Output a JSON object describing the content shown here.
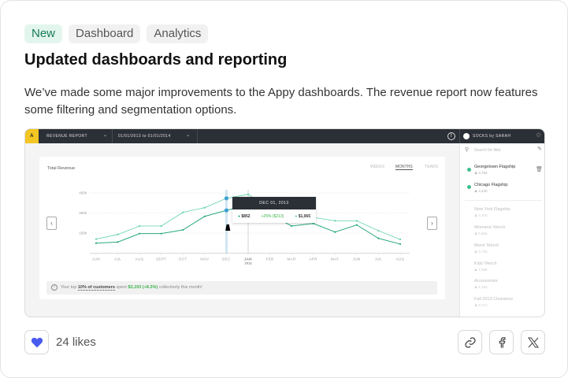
{
  "tags": [
    "New",
    "Dashboard",
    "Analytics"
  ],
  "title": "Updated dashboards and reporting",
  "description": "We’ve made some major improvements to the Appy dashboards. The revenue report now features some filtering and segmentation options.",
  "screenshot": {
    "logo": "A",
    "report_select": "REVENUE REPORT",
    "date_from": "01/01/2013",
    "date_to_word": "to",
    "date_to": "01/01/2014",
    "account": "SOCKS by SARAH",
    "search_placeholder": "Search for filter",
    "active_filters": [
      {
        "name": "Georgetown Flagship",
        "count": "3,753"
      },
      {
        "name": "Chicago Flagship",
        "count": "3,420"
      }
    ],
    "other_filters": [
      {
        "name": "New York Flagship",
        "count": "4,100"
      },
      {
        "name": "Womens' Merch",
        "count": "5,666"
      },
      {
        "name": "Mens' Merch",
        "count": "3,733"
      },
      {
        "name": "Kids' Merch",
        "count": "7,589"
      },
      {
        "name": "Accessories",
        "count": "2,163"
      },
      {
        "name": "Fall 2013 Clearance",
        "count": "8,713"
      }
    ],
    "chart_title": "Total Revenue",
    "ranges": [
      "WEEKS",
      "MONTHS",
      "YEARS"
    ],
    "active_range": "MONTHS",
    "tooltip": {
      "date": "DEC 01, 2013",
      "value_a": "$852",
      "change": "+25% ($213)",
      "value_b": "$1,065"
    },
    "insight": {
      "prefix": "Your top",
      "highlight": "10% of customers",
      "middle": "spent",
      "amount": "$3,193 (+8.3%)",
      "suffix": "collectively this month!"
    },
    "colors": {
      "topbar": "#2b2f36",
      "logo": "#f3c623",
      "series_light": "#5fd3a5",
      "series_dark": "#2aa882",
      "highlight": "#3ca0d0",
      "positive": "#3bb24a"
    }
  },
  "chart_data": {
    "type": "line",
    "categories": [
      "JUN",
      "JUL",
      "AUG",
      "SEPT",
      "OCT",
      "NOV",
      "DEC",
      "JAN",
      "FEB",
      "MAR",
      "APR",
      "MAY",
      "JUN",
      "JUL",
      "AUG"
    ],
    "year_label": "2013",
    "y_ticks": [
      "150k",
      "300k",
      "450k"
    ],
    "ylim": [
      0,
      450
    ],
    "grid": true,
    "series": [
      {
        "values": [
          105,
          140,
          203,
          203,
          305,
          340,
          410,
          440,
          330,
          270,
          267,
          242,
          242,
          168,
          103
        ]
      },
      {
        "values": [
          75,
          83,
          146,
          146,
          174,
          275,
          320,
          360,
          290,
          203,
          222,
          158,
          211,
          111,
          68
        ]
      }
    ]
  },
  "likes": "24 likes"
}
